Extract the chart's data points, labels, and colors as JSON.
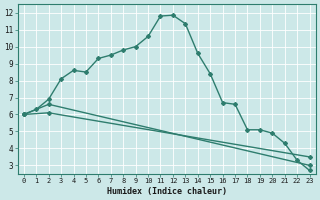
{
  "title": "",
  "xlabel": "Humidex (Indice chaleur)",
  "ylabel": "",
  "bg_color": "#cce8e8",
  "grid_color": "#ffffff",
  "line_color": "#2e7d6e",
  "xlim": [
    -0.5,
    23.5
  ],
  "ylim": [
    2.5,
    12.5
  ],
  "yticks": [
    3,
    4,
    5,
    6,
    7,
    8,
    9,
    10,
    11,
    12
  ],
  "xticks": [
    0,
    1,
    2,
    3,
    4,
    5,
    6,
    7,
    8,
    9,
    10,
    11,
    12,
    13,
    14,
    15,
    16,
    17,
    18,
    19,
    20,
    21,
    22,
    23
  ],
  "line1_x": [
    0,
    1,
    2,
    3,
    4,
    5,
    6,
    7,
    8,
    9,
    10,
    11,
    12,
    13,
    14,
    15,
    16,
    17,
    18,
    19,
    20,
    21,
    22,
    23
  ],
  "line1_y": [
    6.0,
    6.3,
    6.9,
    8.1,
    8.6,
    8.5,
    9.3,
    9.5,
    9.8,
    10.0,
    10.6,
    11.8,
    11.85,
    11.35,
    9.6,
    8.4,
    6.7,
    6.6,
    5.1,
    5.1,
    4.9,
    4.3,
    3.3,
    2.7
  ],
  "line2_x": [
    0,
    2,
    23
  ],
  "line2_y": [
    6.0,
    6.6,
    3.0
  ],
  "line3_x": [
    0,
    2,
    23
  ],
  "line3_y": [
    6.0,
    6.1,
    3.5
  ],
  "marker": "D",
  "markersize": 2.0,
  "linewidth": 1.0,
  "tick_fontsize": 5.0,
  "xlabel_fontsize": 6.0
}
